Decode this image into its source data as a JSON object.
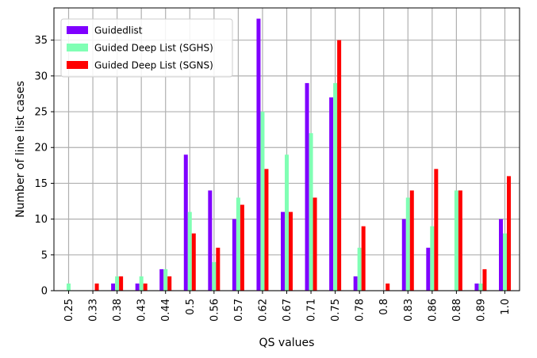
{
  "chart_data": {
    "type": "bar",
    "xlabel": "QS values",
    "ylabel": "Number of line list cases",
    "ylim": [
      0,
      39.5
    ],
    "yticks": [
      0,
      5,
      10,
      15,
      20,
      25,
      30,
      35
    ],
    "grid": true,
    "legend_position": "top-left",
    "categories": [
      "0.25",
      "0.33",
      "0.38",
      "0.43",
      "0.44",
      "0.5",
      "0.56",
      "0.57",
      "0.62",
      "0.67",
      "0.71",
      "0.75",
      "0.78",
      "0.8",
      "0.83",
      "0.86",
      "0.88",
      "0.89",
      "1.0"
    ],
    "series": [
      {
        "name": "Guidedlist",
        "color": "#7f00ff",
        "values": [
          0,
          0,
          1,
          1,
          3,
          19,
          14,
          10,
          38,
          11,
          29,
          27,
          2,
          0,
          10,
          6,
          0,
          1,
          10
        ]
      },
      {
        "name": "Guided Deep List (SGHS)",
        "color": "#80ffb4",
        "values": [
          1,
          0,
          2,
          2,
          3,
          11,
          4,
          13,
          25,
          19,
          22,
          29,
          6,
          0,
          13,
          9,
          14,
          1,
          8
        ]
      },
      {
        "name": "Guided Deep List (SGNS)",
        "color": "#ff0000",
        "values": [
          0,
          1,
          2,
          1,
          2,
          8,
          6,
          12,
          17,
          11,
          13,
          35,
          9,
          1,
          14,
          17,
          14,
          3,
          16
        ]
      }
    ]
  }
}
